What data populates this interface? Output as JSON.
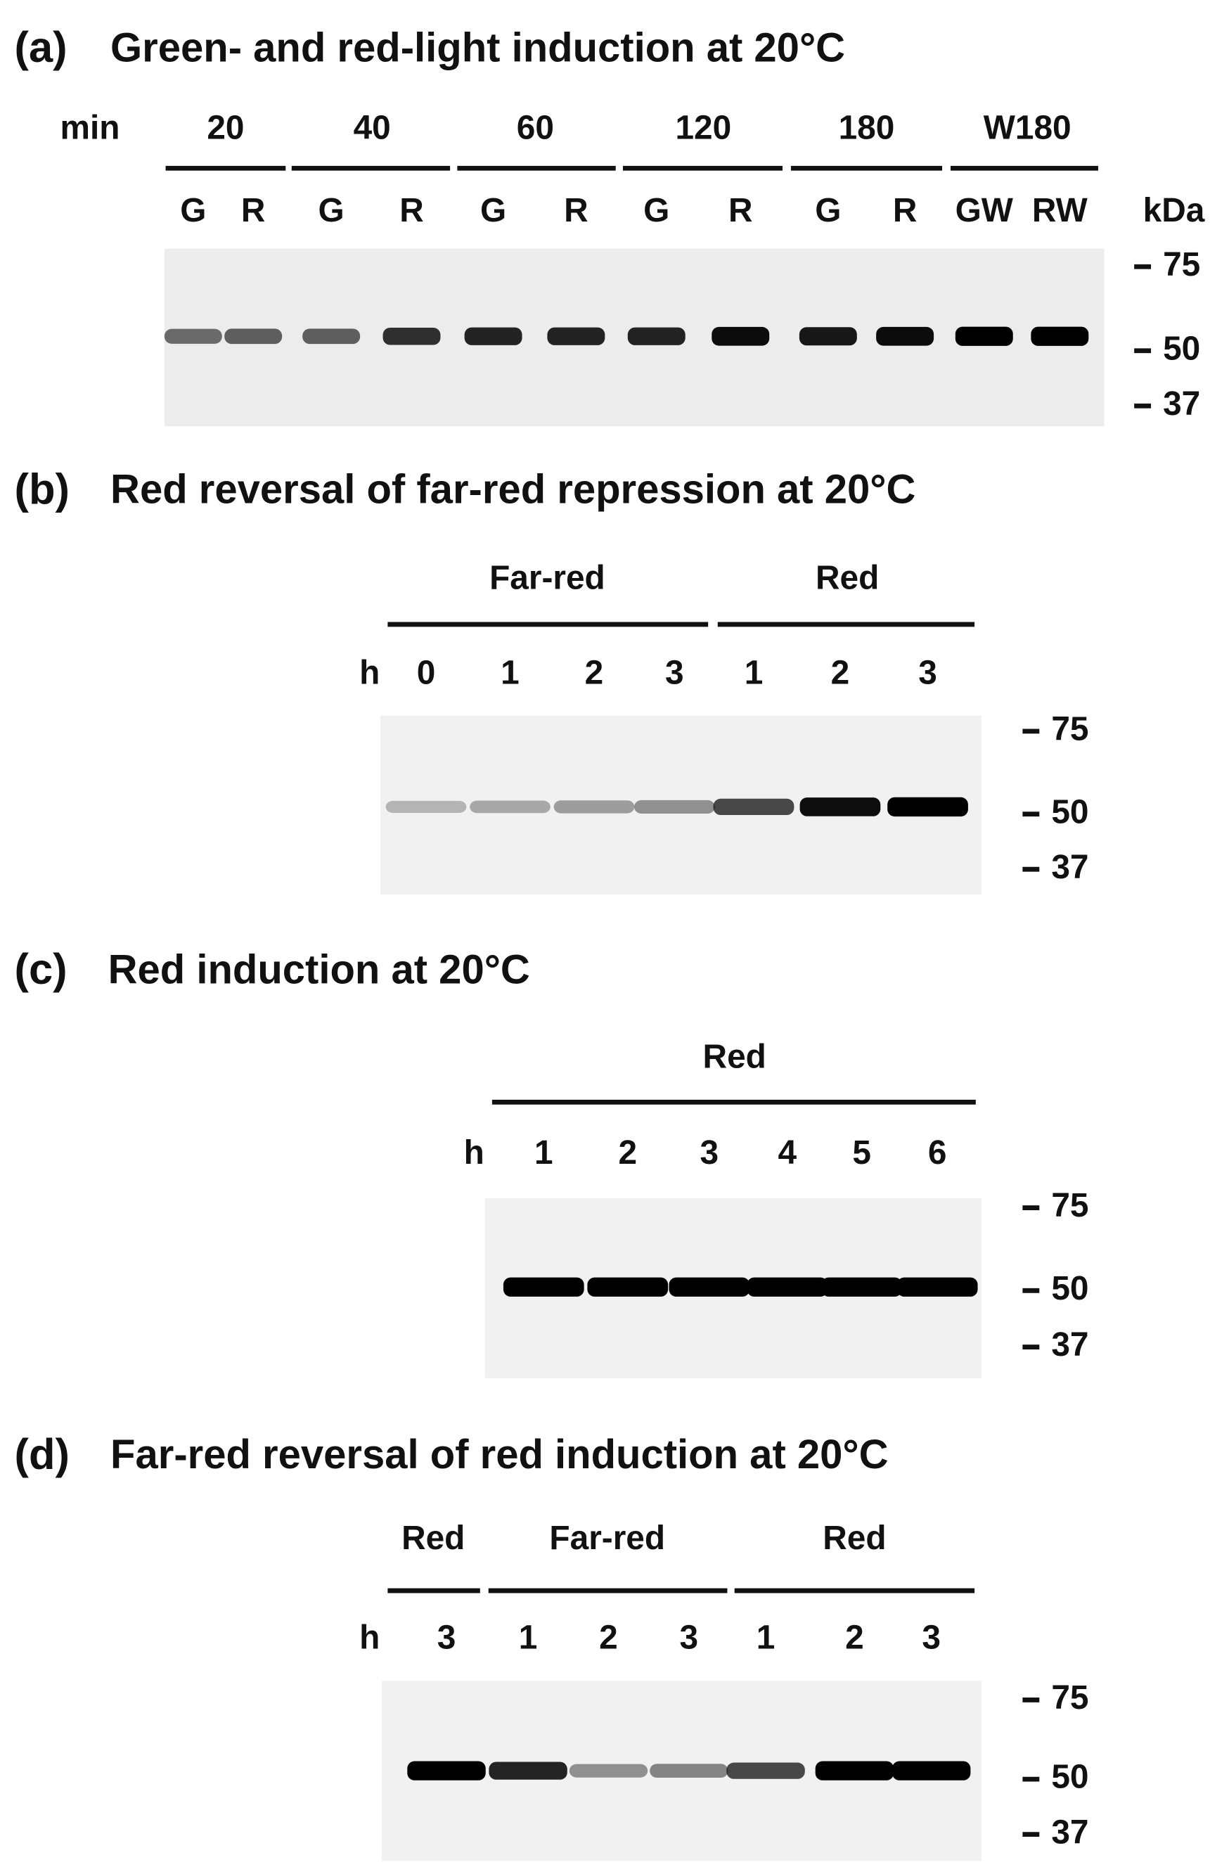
{
  "panels": [
    {
      "label": "(a)",
      "title": "Green- and red-light induction at 20°C",
      "time_unit": "min",
      "groups": [
        "20",
        "40",
        "60",
        "120",
        "180",
        "W180"
      ],
      "lanes": [
        "G",
        "R",
        "G",
        "R",
        "G",
        "R",
        "G",
        "R",
        "G",
        "R",
        "GW",
        "RW"
      ],
      "marker_unit": "kDa",
      "markers": [
        "75",
        "50",
        "37"
      ]
    },
    {
      "label": "(b)",
      "title": "Red reversal of far-red repression at 20°C",
      "time_unit": "h",
      "groups": [
        "Far-red",
        "Red"
      ],
      "lanes": [
        "0",
        "1",
        "2",
        "3",
        "1",
        "2",
        "3"
      ],
      "markers": [
        "75",
        "50",
        "37"
      ]
    },
    {
      "label": "(c)",
      "title": "Red induction at 20°C",
      "time_unit": "h",
      "groups": [
        "Red"
      ],
      "lanes": [
        "1",
        "2",
        "3",
        "4",
        "5",
        "6"
      ],
      "markers": [
        "75",
        "50",
        "37"
      ]
    },
    {
      "label": "(d)",
      "title": "Far-red reversal of red induction at 20°C",
      "time_unit": "h",
      "groups": [
        "Red",
        "Far-red",
        "Red"
      ],
      "lanes": [
        "3",
        "1",
        "2",
        "3",
        "1",
        "2",
        "3"
      ],
      "markers": [
        "75",
        "50",
        "37"
      ]
    }
  ]
}
